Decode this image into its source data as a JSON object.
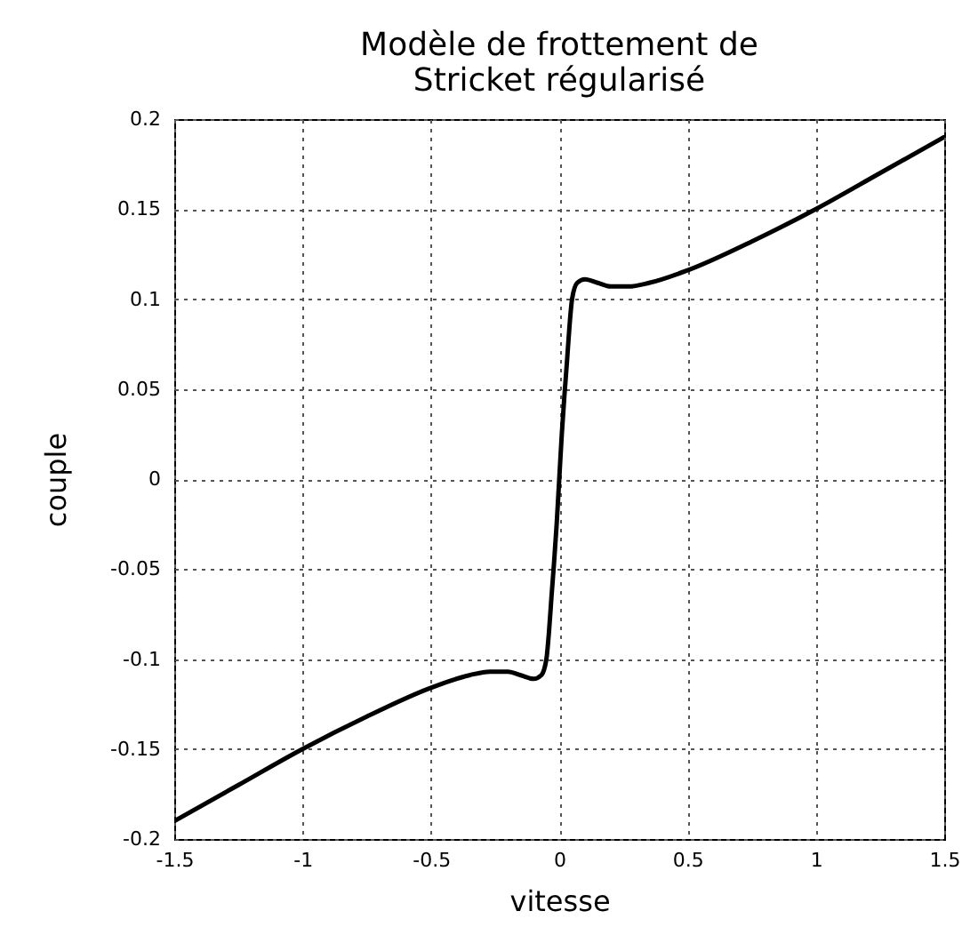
{
  "chart_data": {
    "type": "line",
    "title": "Modèle de frottement de Stricket régularisé",
    "xlabel": "vitesse",
    "ylabel": "couple",
    "x": [
      -1.5,
      -1.25,
      -1,
      -0.75,
      -0.5,
      -0.35,
      -0.27,
      -0.2,
      -0.15,
      -0.1,
      -0.07,
      -0.05,
      -0.04,
      -0.03,
      -0.02,
      -0.01,
      0,
      0.01,
      0.02,
      0.03,
      0.04,
      0.05,
      0.07,
      0.1,
      0.15,
      0.2,
      0.27,
      0.35,
      0.5,
      0.75,
      1,
      1.25,
      1.5
    ],
    "series": [
      {
        "color": "#000000",
        "values": [
          -0.19,
          -0.17,
          -0.15,
          -0.132,
          -0.116,
          -0.109,
          -0.107,
          -0.107,
          -0.109,
          -0.111,
          -0.109,
          -0.1,
          -0.085,
          -0.065,
          -0.046,
          -0.025,
          0,
          0.025,
          0.046,
          0.065,
          0.085,
          0.1,
          0.109,
          0.111,
          0.109,
          0.107,
          0.107,
          0.109,
          0.116,
          0.132,
          0.15,
          0.17,
          0.19
        ]
      }
    ],
    "xlim": [
      -1.5,
      1.5
    ],
    "xticks": [
      -1.5,
      -1,
      -0.5,
      0,
      0.5,
      1,
      1.5
    ],
    "ylim": [
      -0.2,
      0.2
    ],
    "yticks": [
      -0.2,
      -0.15,
      -0.1,
      -0.05,
      0,
      0.05,
      0.1,
      0.15,
      0.2
    ],
    "grid": true,
    "line_style": "solid"
  }
}
